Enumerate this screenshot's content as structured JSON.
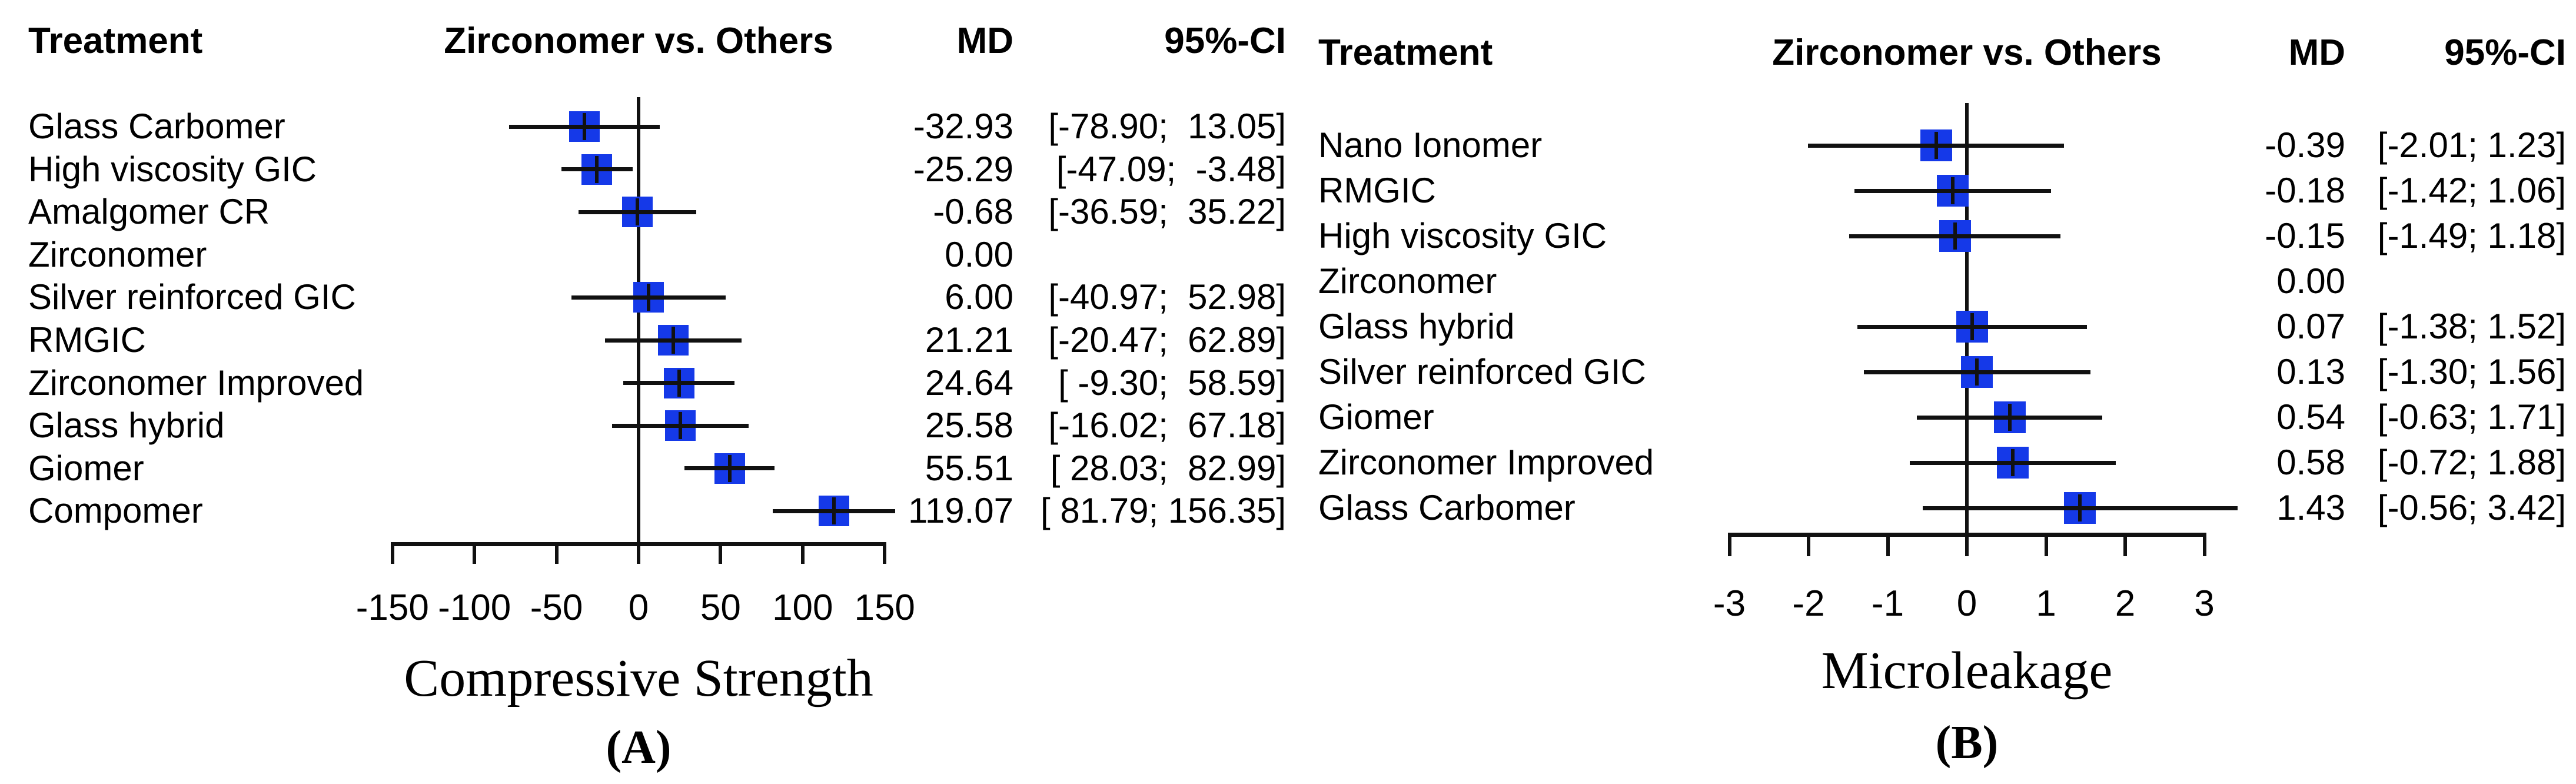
{
  "colors": {
    "marker": "#1539e8",
    "line": "#111111",
    "background": "#ffffff"
  },
  "chart_data": [
    {
      "type": "forest",
      "panel_label": "(A)",
      "xlabel": "Compressive Strength",
      "columns": {
        "treatment": "Treatment",
        "comparison": "Zirconomer vs. Others",
        "md": "MD",
        "ci": "95%-CI"
      },
      "xlim": [
        -150,
        150
      ],
      "reference_line": 0,
      "x_ticks": [
        -150,
        -100,
        -50,
        0,
        50,
        100,
        150
      ],
      "tick_labels": [
        "-150",
        "-100",
        "-50",
        "0",
        "50",
        "100",
        "150"
      ],
      "rows": [
        {
          "treatment": "Glass Carbomer",
          "md": -32.93,
          "ci": [
            -78.9,
            13.05
          ],
          "md_text": "-32.93",
          "ci_text": "[-78.90;  13.05]"
        },
        {
          "treatment": "High viscosity GIC",
          "md": -25.29,
          "ci": [
            -47.09,
            -3.48
          ],
          "md_text": "-25.29",
          "ci_text": "[-47.09;  -3.48]"
        },
        {
          "treatment": "Amalgomer CR",
          "md": -0.68,
          "ci": [
            -36.59,
            35.22
          ],
          "md_text": "-0.68",
          "ci_text": "[-36.59;  35.22]"
        },
        {
          "treatment": "Zirconomer",
          "md": 0.0,
          "ci": null,
          "md_text": "0.00",
          "ci_text": ""
        },
        {
          "treatment": "Silver reinforced GIC",
          "md": 6.0,
          "ci": [
            -40.97,
            52.98
          ],
          "md_text": "6.00",
          "ci_text": "[-40.97;  52.98]"
        },
        {
          "treatment": "RMGIC",
          "md": 21.21,
          "ci": [
            -20.47,
            62.89
          ],
          "md_text": "21.21",
          "ci_text": "[-20.47;  62.89]"
        },
        {
          "treatment": "Zirconomer Improved",
          "md": 24.64,
          "ci": [
            -9.3,
            58.59
          ],
          "md_text": "24.64",
          "ci_text": "[ -9.30;  58.59]"
        },
        {
          "treatment": "Glass hybrid",
          "md": 25.58,
          "ci": [
            -16.02,
            67.18
          ],
          "md_text": "25.58",
          "ci_text": "[-16.02;  67.18]"
        },
        {
          "treatment": "Giomer",
          "md": 55.51,
          "ci": [
            28.03,
            82.99
          ],
          "md_text": "55.51",
          "ci_text": "[ 28.03;  82.99]"
        },
        {
          "treatment": "Compomer",
          "md": 119.07,
          "ci": [
            81.79,
            156.35
          ],
          "md_text": "119.07",
          "ci_text": "[ 81.79; 156.35]"
        }
      ]
    },
    {
      "type": "forest",
      "panel_label": "(B)",
      "xlabel": "Microleakage",
      "columns": {
        "treatment": "Treatment",
        "comparison": "Zirconomer vs. Others",
        "md": "MD",
        "ci": "95%-CI"
      },
      "xlim": [
        -3,
        3
      ],
      "reference_line": 0,
      "x_ticks": [
        -3,
        -2,
        -1,
        0,
        1,
        2,
        3
      ],
      "tick_labels": [
        "-3",
        "-2",
        "-1",
        "0",
        "1",
        "2",
        "3"
      ],
      "rows": [
        {
          "treatment": "Nano Ionomer",
          "md": -0.39,
          "ci": [
            -2.01,
            1.23
          ],
          "md_text": "-0.39",
          "ci_text": "[-2.01; 1.23]"
        },
        {
          "treatment": "RMGIC",
          "md": -0.18,
          "ci": [
            -1.42,
            1.06
          ],
          "md_text": "-0.18",
          "ci_text": "[-1.42; 1.06]"
        },
        {
          "treatment": "High viscosity GIC",
          "md": -0.15,
          "ci": [
            -1.49,
            1.18
          ],
          "md_text": "-0.15",
          "ci_text": "[-1.49; 1.18]"
        },
        {
          "treatment": "Zirconomer",
          "md": 0.0,
          "ci": null,
          "md_text": "0.00",
          "ci_text": ""
        },
        {
          "treatment": "Glass hybrid",
          "md": 0.07,
          "ci": [
            -1.38,
            1.52
          ],
          "md_text": "0.07",
          "ci_text": "[-1.38; 1.52]"
        },
        {
          "treatment": "Silver reinforced GIC",
          "md": 0.13,
          "ci": [
            -1.3,
            1.56
          ],
          "md_text": "0.13",
          "ci_text": "[-1.30; 1.56]"
        },
        {
          "treatment": "Giomer",
          "md": 0.54,
          "ci": [
            -0.63,
            1.71
          ],
          "md_text": "0.54",
          "ci_text": "[-0.63; 1.71]"
        },
        {
          "treatment": "Zirconomer Improved",
          "md": 0.58,
          "ci": [
            -0.72,
            1.88
          ],
          "md_text": "0.58",
          "ci_text": "[-0.72; 1.88]"
        },
        {
          "treatment": "Glass Carbomer",
          "md": 1.43,
          "ci": [
            -0.56,
            3.42
          ],
          "md_text": "1.43",
          "ci_text": "[-0.56; 3.42]"
        }
      ]
    }
  ]
}
